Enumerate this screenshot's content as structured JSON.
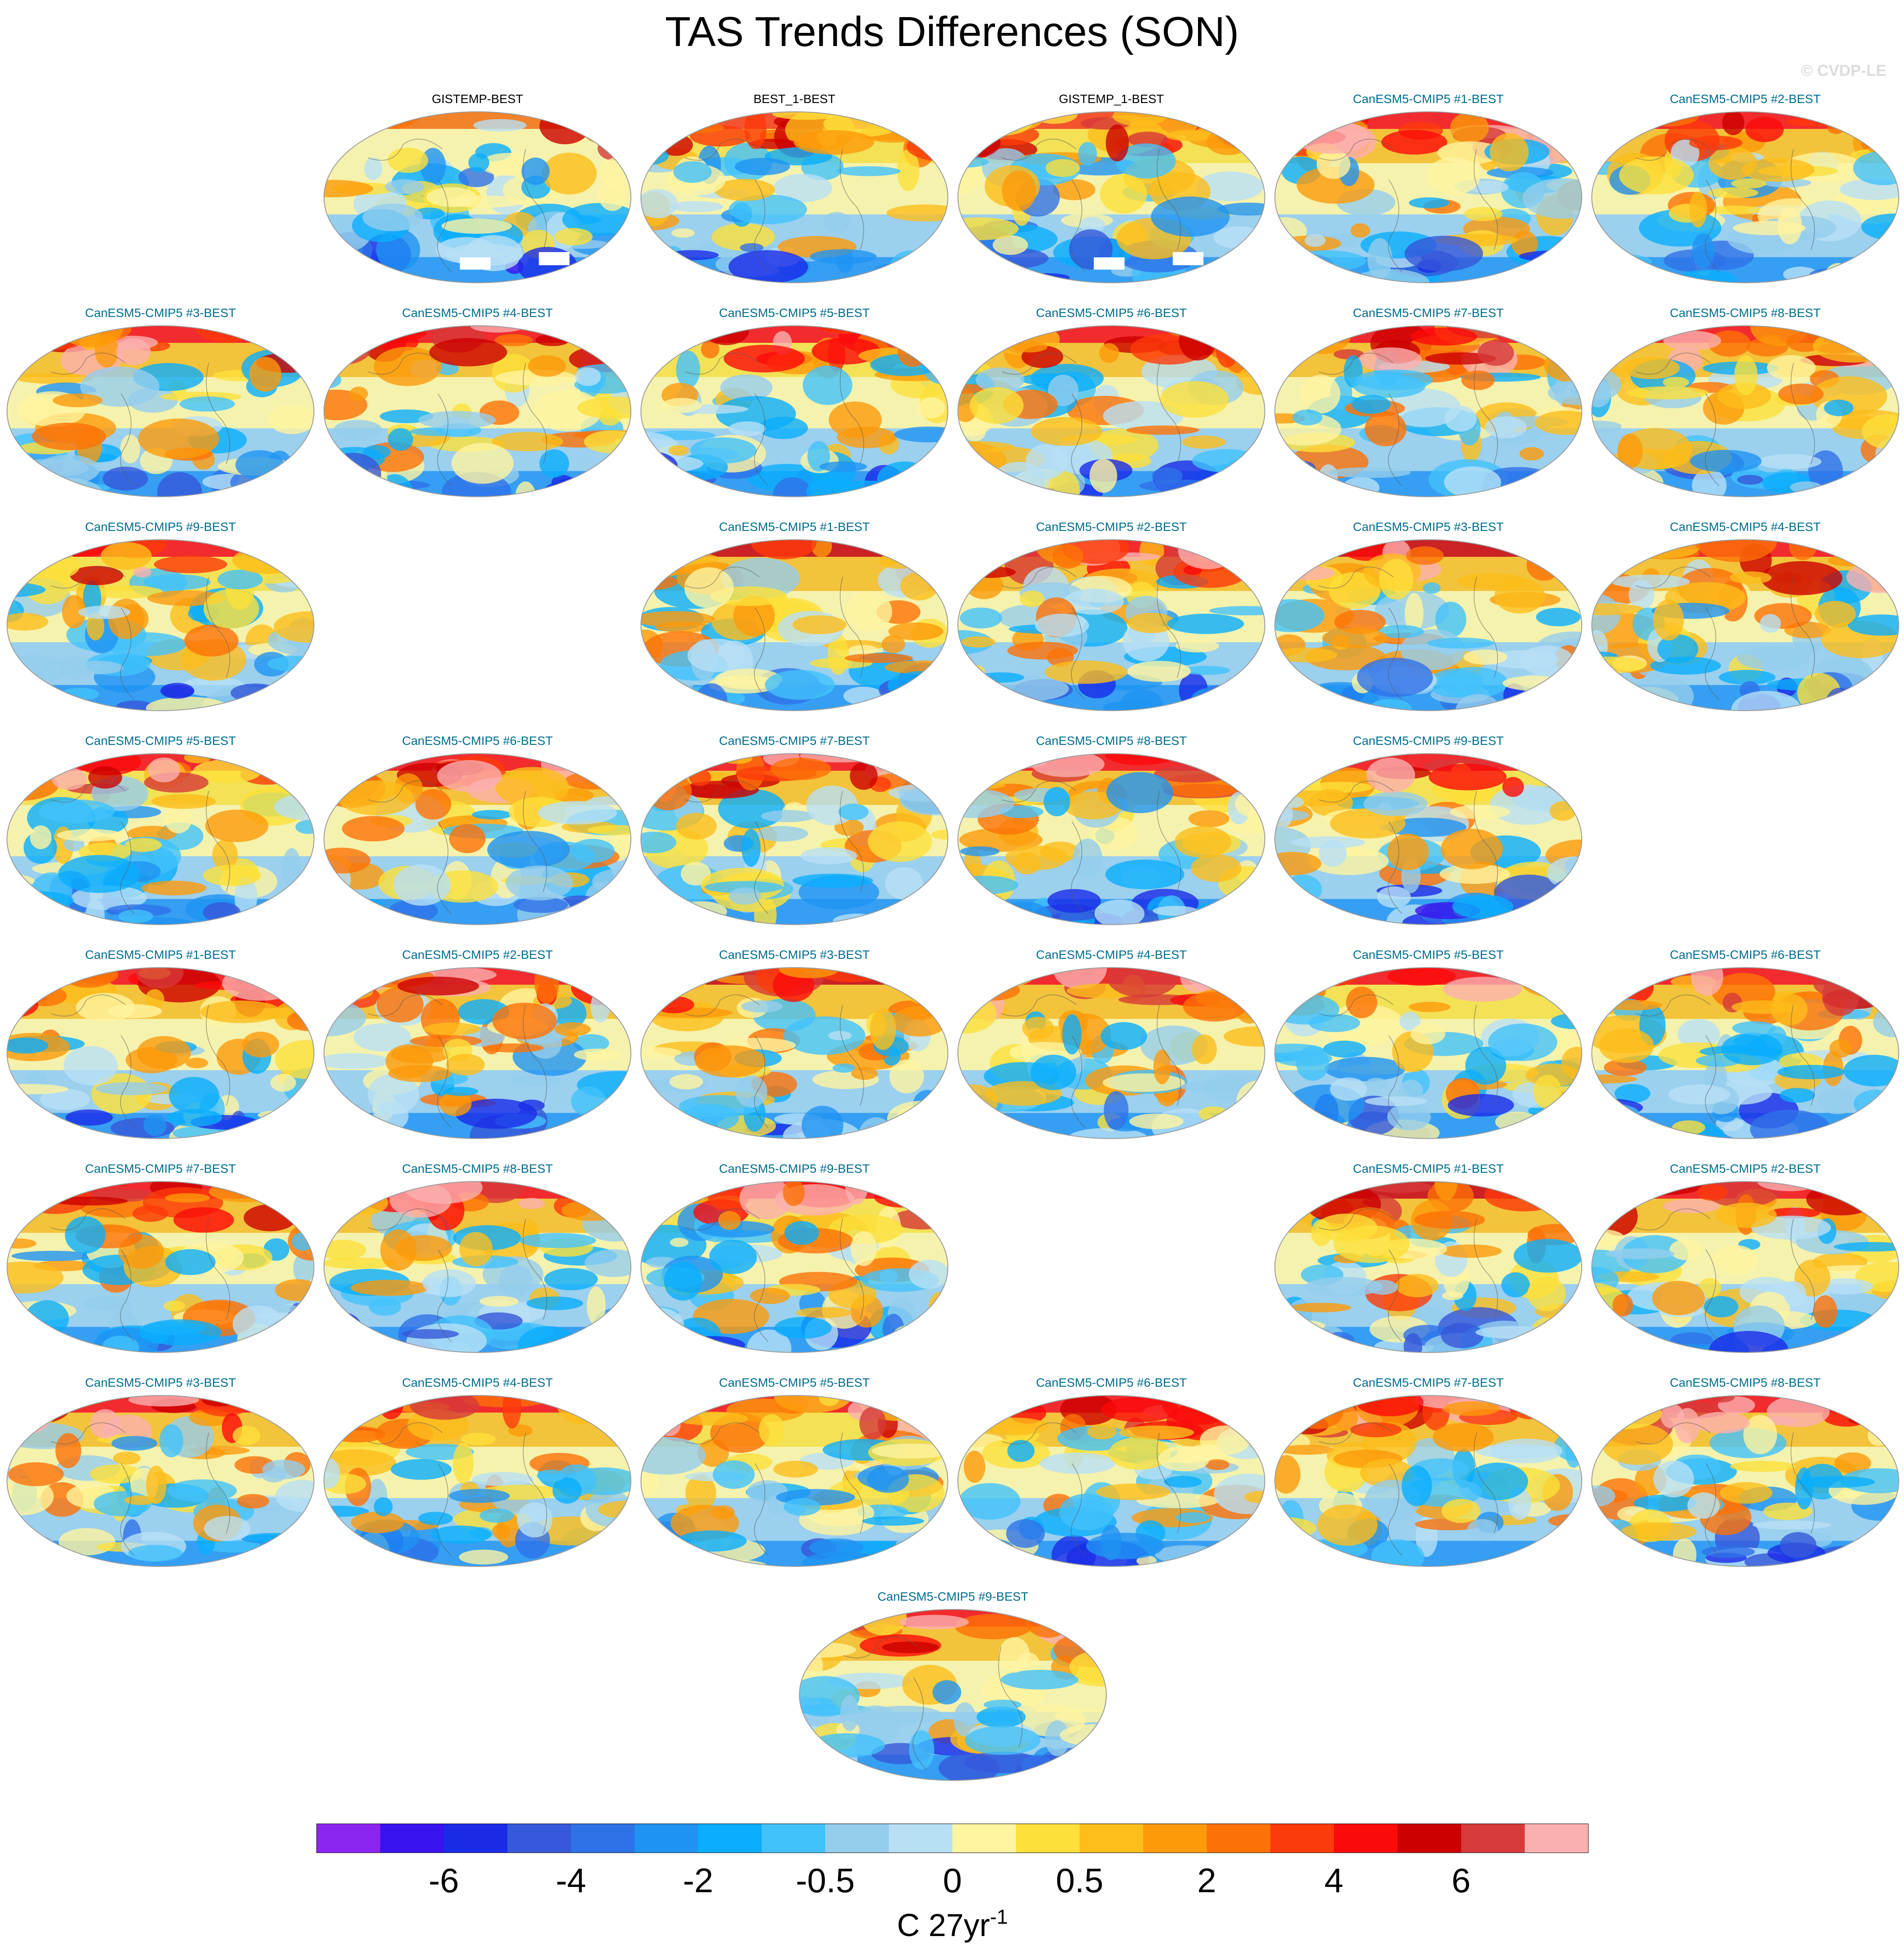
{
  "title": "TAS Trends Differences (SON)",
  "credit": "© CVDP-LE",
  "chart_data": {
    "type": "heatmap",
    "projection": "Robinson world maps",
    "title": "TAS Trends Differences (SON)",
    "panels": [
      {
        "label": "GISTEMP-BEST",
        "label_color": "#000000",
        "row": 0,
        "col": 1,
        "seed": 11,
        "warm": 0.15,
        "missing_antarctic": true
      },
      {
        "label": "BEST_1-BEST",
        "label_color": "#000000",
        "row": 0,
        "col": 2,
        "seed": 12,
        "warm": 0.25
      },
      {
        "label": "GISTEMP_1-BEST",
        "label_color": "#000000",
        "row": 0,
        "col": 3,
        "seed": 13,
        "warm": 0.25,
        "missing_antarctic": true
      },
      {
        "label": "CanESM5-CMIP5 #1-BEST",
        "label_color": "#006d8f",
        "row": 0,
        "col": 4,
        "seed": 21,
        "warm": 0.55
      },
      {
        "label": "CanESM5-CMIP5 #2-BEST",
        "label_color": "#006d8f",
        "row": 0,
        "col": 5,
        "seed": 22,
        "warm": 0.5
      },
      {
        "label": "CanESM5-CMIP5 #3-BEST",
        "label_color": "#006d8f",
        "row": 1,
        "col": 0,
        "seed": 23,
        "warm": 0.55
      },
      {
        "label": "CanESM5-CMIP5 #4-BEST",
        "label_color": "#006d8f",
        "row": 1,
        "col": 1,
        "seed": 24,
        "warm": 0.5
      },
      {
        "label": "CanESM5-CMIP5 #5-BEST",
        "label_color": "#006d8f",
        "row": 1,
        "col": 2,
        "seed": 25,
        "warm": 0.4
      },
      {
        "label": "CanESM5-CMIP5 #6-BEST",
        "label_color": "#006d8f",
        "row": 1,
        "col": 3,
        "seed": 26,
        "warm": 0.5
      },
      {
        "label": "CanESM5-CMIP5 #7-BEST",
        "label_color": "#006d8f",
        "row": 1,
        "col": 4,
        "seed": 27,
        "warm": 0.55
      },
      {
        "label": "CanESM5-CMIP5 #8-BEST",
        "label_color": "#006d8f",
        "row": 1,
        "col": 5,
        "seed": 28,
        "warm": 0.5
      },
      {
        "label": "CanESM5-CMIP5 #9-BEST",
        "label_color": "#006d8f",
        "row": 2,
        "col": 0,
        "seed": 29,
        "warm": 0.4
      },
      {
        "label": "CanESM5-CMIP5 #1-BEST",
        "label_color": "#006d8f",
        "row": 2,
        "col": 2,
        "seed": 31,
        "warm": 0.6
      },
      {
        "label": "CanESM5-CMIP5 #2-BEST",
        "label_color": "#006d8f",
        "row": 2,
        "col": 3,
        "seed": 32,
        "warm": 0.5
      },
      {
        "label": "CanESM5-CMIP5 #3-BEST",
        "label_color": "#006d8f",
        "row": 2,
        "col": 4,
        "seed": 33,
        "warm": 0.6
      },
      {
        "label": "CanESM5-CMIP5 #4-BEST",
        "label_color": "#006d8f",
        "row": 2,
        "col": 5,
        "seed": 34,
        "warm": 0.55
      },
      {
        "label": "CanESM5-CMIP5 #5-BEST",
        "label_color": "#006d8f",
        "row": 3,
        "col": 0,
        "seed": 35,
        "warm": 0.4
      },
      {
        "label": "CanESM5-CMIP5 #6-BEST",
        "label_color": "#006d8f",
        "row": 3,
        "col": 1,
        "seed": 36,
        "warm": 0.55
      },
      {
        "label": "CanESM5-CMIP5 #7-BEST",
        "label_color": "#006d8f",
        "row": 3,
        "col": 2,
        "seed": 37,
        "warm": 0.5
      },
      {
        "label": "CanESM5-CMIP5 #8-BEST",
        "label_color": "#006d8f",
        "row": 3,
        "col": 3,
        "seed": 38,
        "warm": 0.45
      },
      {
        "label": "CanESM5-CMIP5 #9-BEST",
        "label_color": "#006d8f",
        "row": 3,
        "col": 4,
        "seed": 39,
        "warm": 0.4
      },
      {
        "label": "CanESM5-CMIP5 #1-BEST",
        "label_color": "#006d8f",
        "row": 4,
        "col": 0,
        "seed": 41,
        "warm": 0.5
      },
      {
        "label": "CanESM5-CMIP5 #2-BEST",
        "label_color": "#006d8f",
        "row": 4,
        "col": 1,
        "seed": 42,
        "warm": 0.55
      },
      {
        "label": "CanESM5-CMIP5 #3-BEST",
        "label_color": "#006d8f",
        "row": 4,
        "col": 2,
        "seed": 43,
        "warm": 0.6
      },
      {
        "label": "CanESM5-CMIP5 #4-BEST",
        "label_color": "#006d8f",
        "row": 4,
        "col": 3,
        "seed": 44,
        "warm": 0.5
      },
      {
        "label": "CanESM5-CMIP5 #5-BEST",
        "label_color": "#006d8f",
        "row": 4,
        "col": 4,
        "seed": 45,
        "warm": 0.4
      },
      {
        "label": "CanESM5-CMIP5 #6-BEST",
        "label_color": "#006d8f",
        "row": 4,
        "col": 5,
        "seed": 46,
        "warm": 0.55
      },
      {
        "label": "CanESM5-CMIP5 #7-BEST",
        "label_color": "#006d8f",
        "row": 5,
        "col": 0,
        "seed": 47,
        "warm": 0.5
      },
      {
        "label": "CanESM5-CMIP5 #8-BEST",
        "label_color": "#006d8f",
        "row": 5,
        "col": 1,
        "seed": 48,
        "warm": 0.5
      },
      {
        "label": "CanESM5-CMIP5 #9-BEST",
        "label_color": "#006d8f",
        "row": 5,
        "col": 2,
        "seed": 49,
        "warm": 0.4
      },
      {
        "label": "CanESM5-CMIP5 #1-BEST",
        "label_color": "#006d8f",
        "row": 5,
        "col": 4,
        "seed": 51,
        "warm": 0.6
      },
      {
        "label": "CanESM5-CMIP5 #2-BEST",
        "label_color": "#006d8f",
        "row": 5,
        "col": 5,
        "seed": 52,
        "warm": 0.55
      },
      {
        "label": "CanESM5-CMIP5 #3-BEST",
        "label_color": "#006d8f",
        "row": 6,
        "col": 0,
        "seed": 53,
        "warm": 0.55
      },
      {
        "label": "CanESM5-CMIP5 #4-BEST",
        "label_color": "#006d8f",
        "row": 6,
        "col": 1,
        "seed": 54,
        "warm": 0.5
      },
      {
        "label": "CanESM5-CMIP5 #5-BEST",
        "label_color": "#006d8f",
        "row": 6,
        "col": 2,
        "seed": 55,
        "warm": 0.4
      },
      {
        "label": "CanESM5-CMIP5 #6-BEST",
        "label_color": "#006d8f",
        "row": 6,
        "col": 3,
        "seed": 56,
        "warm": 0.55
      },
      {
        "label": "CanESM5-CMIP5 #7-BEST",
        "label_color": "#006d8f",
        "row": 6,
        "col": 4,
        "seed": 57,
        "warm": 0.5
      },
      {
        "label": "CanESM5-CMIP5 #8-BEST",
        "label_color": "#006d8f",
        "row": 6,
        "col": 5,
        "seed": 58,
        "warm": 0.45
      },
      {
        "label": "CanESM5-CMIP5 #9-BEST",
        "label_color": "#006d8f",
        "row": 7,
        "col": 2.5,
        "seed": 59,
        "warm": 0.45
      }
    ],
    "colorbar": {
      "colors": [
        "#8c24f0",
        "#3a12ee",
        "#1a2be8",
        "#3658da",
        "#2f72e8",
        "#1f93f2",
        "#0aaefc",
        "#42c2fb",
        "#95cdec",
        "#b8e0f5",
        "#fff4a0",
        "#fde03a",
        "#fdbd1a",
        "#fd9a0a",
        "#fd7206",
        "#fd3a0a",
        "#fb0a0a",
        "#cc0000",
        "#d63a3a",
        "#fbb0b0"
      ],
      "tick_labels": [
        "-6",
        "-4",
        "-2",
        "-0.5",
        "0",
        "0.5",
        "2",
        "4",
        "6"
      ],
      "units": "C 27yr",
      "units_superscript": "-1"
    }
  }
}
